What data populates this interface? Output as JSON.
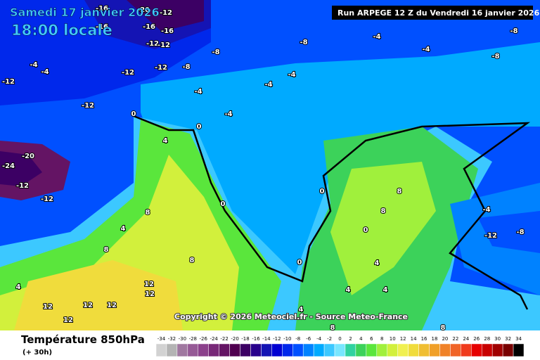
{
  "header": {
    "date": "Samedi 17 janvier 2026",
    "time": "18:00 locale",
    "run": "Run ARPEGE 12 Z du Vendredi 16 janvier 2026"
  },
  "copyright": "Copyright © 2026 Meteociel.fr - Source Meteo-France",
  "footer": {
    "title": "Température 850hPa",
    "lead": "(+ 30h)"
  },
  "scale": {
    "values": [
      -34,
      -32,
      -30,
      -28,
      -26,
      -24,
      -22,
      -20,
      -18,
      -16,
      -14,
      -12,
      -10,
      -8,
      -6,
      -4,
      -2,
      0,
      2,
      4,
      6,
      8,
      10,
      12,
      14,
      16,
      18,
      20,
      22,
      24,
      26,
      28,
      30,
      32,
      34
    ],
    "colors": [
      "#d2d2d2",
      "#b4b4b4",
      "#a078a0",
      "#965a96",
      "#8c418c",
      "#782878",
      "#641464",
      "#500050",
      "#3c0064",
      "#28008c",
      "#1414b4",
      "#0000d2",
      "#0028eb",
      "#0050ff",
      "#0082ff",
      "#00aaff",
      "#3cc8ff",
      "#78e6ff",
      "#30d2a0",
      "#3cd25a",
      "#5ae63c",
      "#a0f03c",
      "#d2f03c",
      "#f0f050",
      "#f0dc3c",
      "#f0be32",
      "#f0a028",
      "#f08228",
      "#f06428",
      "#f03c1e",
      "#e60000",
      "#c80000",
      "#a00000",
      "#780000",
      "#000000"
    ]
  },
  "contour_labels": [
    -16,
    -20,
    -12,
    -16,
    -16,
    -16,
    -12,
    -12,
    -8,
    -8,
    -4,
    -4,
    -8,
    -8,
    -4,
    -4,
    -12,
    -12,
    -8,
    -4,
    -4,
    -4,
    -12,
    -12,
    -4,
    0,
    0,
    4,
    -20,
    -24,
    -12,
    -12,
    0,
    0,
    8,
    8,
    8,
    4,
    8,
    8,
    0,
    4,
    12,
    12,
    12,
    12,
    12,
    12,
    -12,
    -8,
    -4,
    0,
    4,
    4,
    4,
    4,
    8,
    8
  ]
}
